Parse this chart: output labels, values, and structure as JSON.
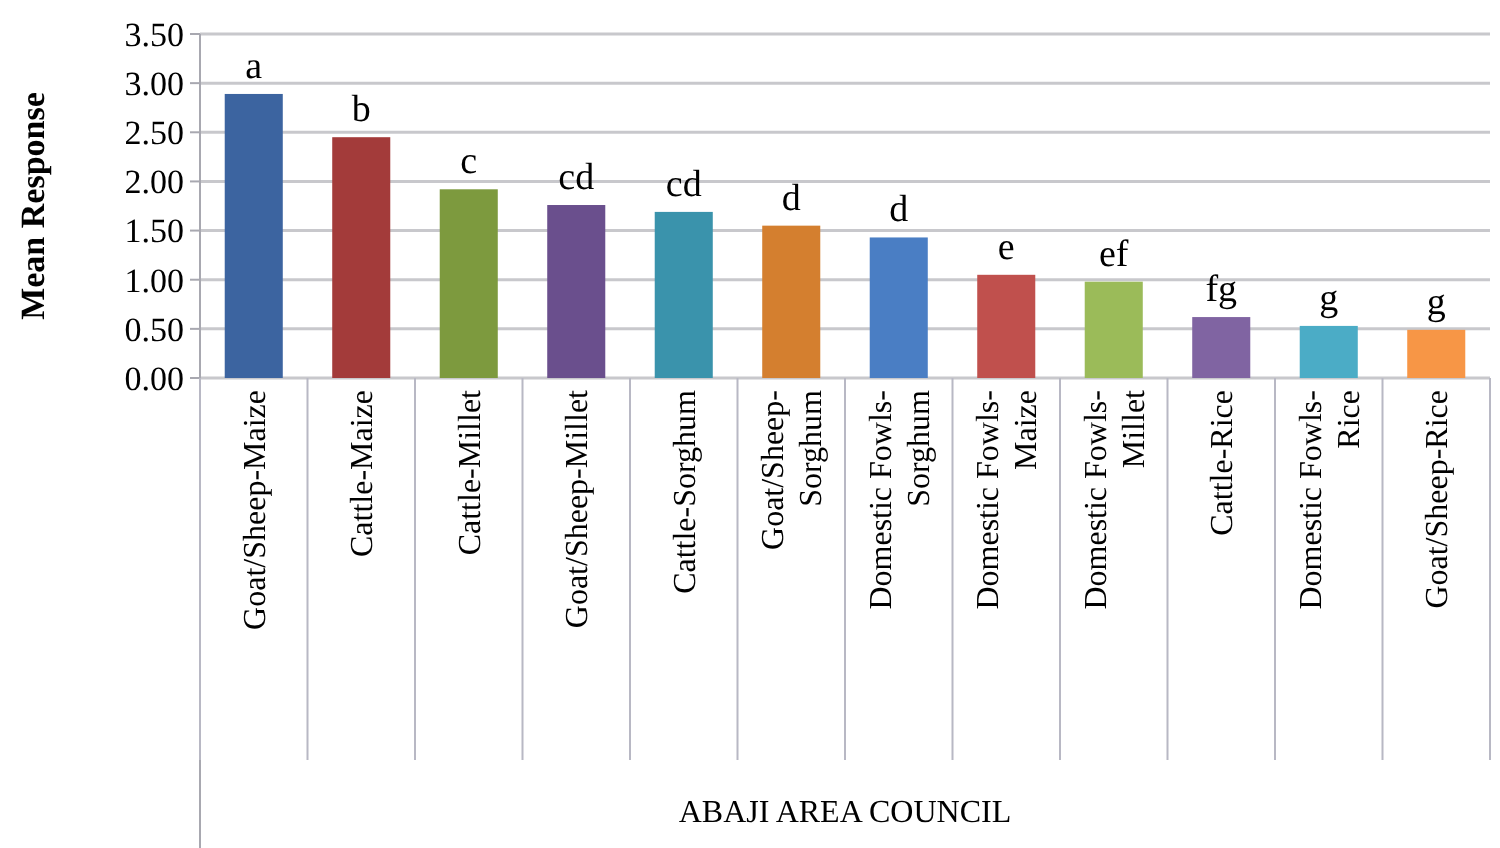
{
  "chart_data": {
    "type": "bar",
    "ylabel": "Mean Response",
    "categories": [
      "Goat/Sheep-Maize",
      "Cattle-Maize",
      "Cattle-Millet",
      "Goat/Sheep-Millet",
      "Cattle-Sorghum",
      "Goat/Sheep-Sorghum",
      "Domestic Fowls-Sorghum",
      "Domestic Fowls-Maize",
      "Domestic Fowls-Millet",
      "Cattle-Rice",
      "Domestic Fowls-Rice",
      "Goat/Sheep-Rice"
    ],
    "values": [
      2.89,
      2.45,
      1.92,
      1.76,
      1.69,
      1.55,
      1.43,
      1.05,
      0.98,
      0.62,
      0.53,
      0.49
    ],
    "colors": [
      "#3c64a0",
      "#a33b3a",
      "#7d9a3e",
      "#6a4f8d",
      "#3a93ac",
      "#d47f2f",
      "#4a7ec4",
      "#c0504d",
      "#9bbb59",
      "#8064a2",
      "#4bacc6",
      "#f79646"
    ],
    "ylim": [
      0,
      3.5
    ],
    "yticks": [
      {
        "value": 0,
        "label": "0.00"
      },
      {
        "value": 0.5,
        "label": "0.50"
      },
      {
        "value": 1,
        "label": "1.00"
      },
      {
        "value": 1.5,
        "label": "1.50"
      },
      {
        "value": 2,
        "label": "2.00"
      },
      {
        "value": 2.5,
        "label": "2.50"
      },
      {
        "value": 3,
        "label": "3.00"
      },
      {
        "value": 3.5,
        "label": "3.50"
      }
    ],
    "grid": "y",
    "annotations": [
      "ABAJI AREA COUNCIL",
      {
        "text": "a",
        "x": "Goat/Sheep-Maize",
        "y": 2.89
      },
      {
        "text": "b",
        "x": "Cattle-Maize",
        "y": 2.45
      },
      {
        "text": "c",
        "x": "Cattle-Millet",
        "y": 1.92
      },
      {
        "text": "cd",
        "x": "Goat/Sheep-Millet",
        "y": 1.76
      },
      {
        "text": "cd",
        "x": "Cattle-Sorghum",
        "y": 1.69
      },
      {
        "text": "d",
        "x": "Goat/Sheep-Sorghum",
        "y": 1.55
      },
      {
        "text": "d",
        "x": "Domestic Fowls-Sorghum",
        "y": 1.43
      },
      {
        "text": "e",
        "x": "Domestic Fowls-Maize",
        "y": 1.05
      },
      {
        "text": "ef",
        "x": "Domestic Fowls-Millet",
        "y": 0.98
      },
      {
        "text": "fg",
        "x": "Cattle-Rice",
        "y": 0.62
      },
      {
        "text": "g",
        "x": "Domestic Fowls-Rice",
        "y": 0.53
      },
      {
        "text": "g",
        "x": "Goat/Sheep-Rice",
        "y": 0.49
      }
    ]
  }
}
